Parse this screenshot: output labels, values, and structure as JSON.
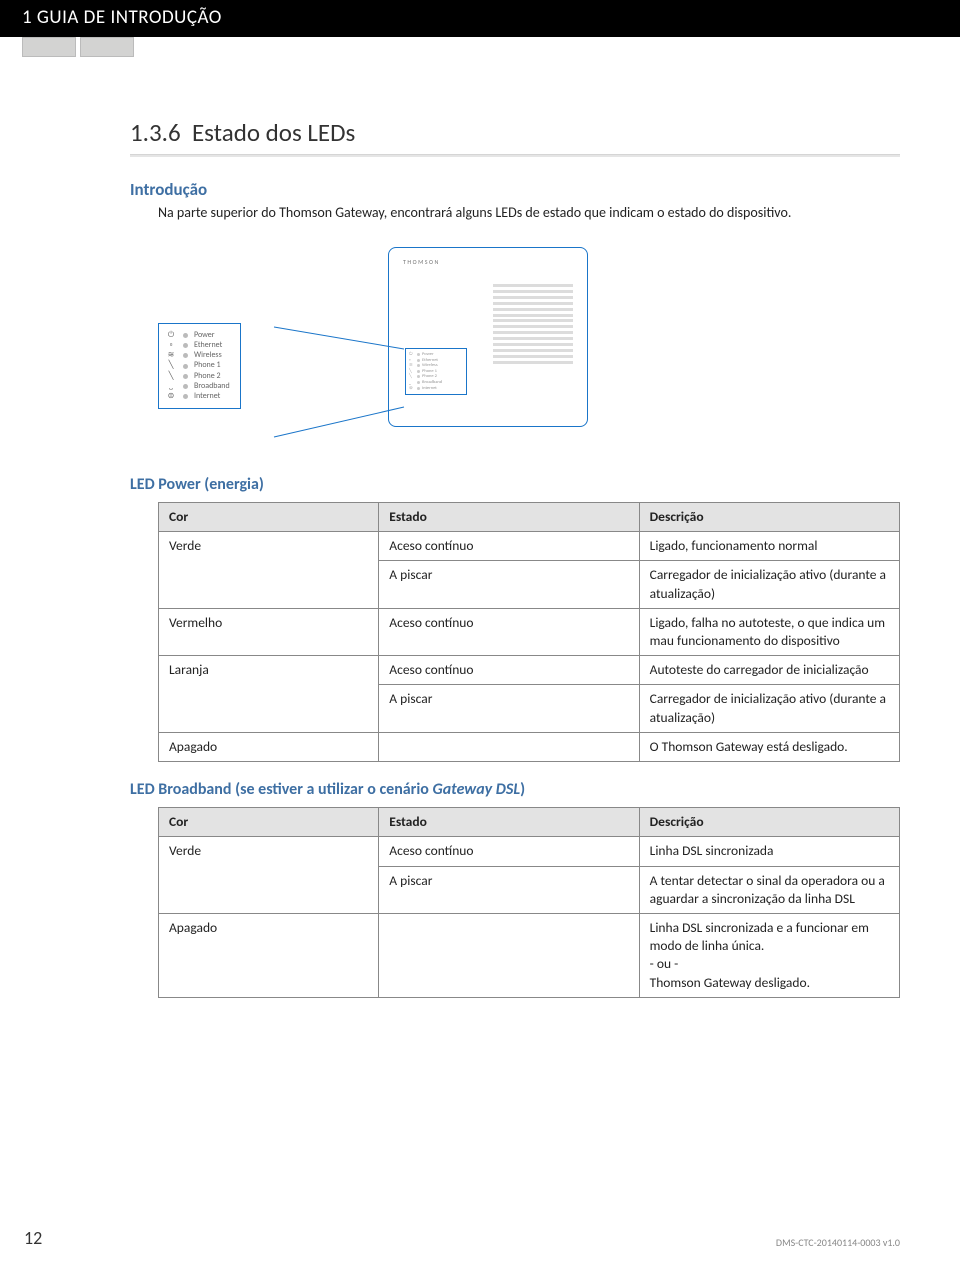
{
  "header": {
    "chapter_title": "1 GUIA DE INTRODUÇÃO"
  },
  "section": {
    "number": "1.3.6",
    "title": "Estado dos LEDs",
    "intro_heading": "Introdução",
    "intro_text": "Na parte superior do Thomson Gateway, encontrará alguns LEDs de estado que indicam o estado do dispositivo."
  },
  "legend": {
    "items": [
      {
        "icon": "⏻",
        "label": "Power"
      },
      {
        "icon": "▫",
        "label": "Ethernet"
      },
      {
        "icon": "≋",
        "label": "Wireless"
      },
      {
        "icon": "╲",
        "label": "Phone 1"
      },
      {
        "icon": "╲",
        "label": "Phone 2"
      },
      {
        "icon": "⎵",
        "label": "Broadband"
      },
      {
        "icon": "⊜",
        "label": "Internet"
      }
    ],
    "brand": "THOMSON"
  },
  "power_table": {
    "heading": "LED Power (energia)",
    "columns": [
      "Cor",
      "Estado",
      "Descrição"
    ],
    "rows": [
      {
        "cor": "Verde",
        "cor_rowspan": 2,
        "estado": "Aceso contínuo",
        "desc": "Ligado, funcionamento normal"
      },
      {
        "cor": null,
        "estado": "A piscar",
        "desc": "Carregador de inicialização ativo (durante a atualização)"
      },
      {
        "cor": "Vermelho",
        "cor_rowspan": 1,
        "estado": "Aceso contínuo",
        "desc": "Ligado, falha no autoteste, o que indica um mau funcionamento do dispositivo"
      },
      {
        "cor": "Laranja",
        "cor_rowspan": 2,
        "estado": "Aceso contínuo",
        "desc": "Autoteste do carregador de inicialização"
      },
      {
        "cor": null,
        "estado": "A piscar",
        "desc": "Carregador de inicialização ativo (durante a atualização)"
      },
      {
        "cor": "Apagado",
        "cor_rowspan": 1,
        "estado_colspan": true,
        "desc": "O Thomson Gateway está desligado."
      }
    ]
  },
  "broadband_table": {
    "heading": "LED Broadband (se estiver a utilizar o cenário Gateway DSL)",
    "heading_prefix": "LED Broadband (se estiver a utilizar o cenário ",
    "heading_em": "Gateway DSL",
    "heading_suffix": ")",
    "columns": [
      "Cor",
      "Estado",
      "Descrição"
    ],
    "rows": [
      {
        "cor": "Verde",
        "cor_rowspan": 2,
        "estado": "Aceso contínuo",
        "desc": "Linha DSL sincronizada"
      },
      {
        "cor": null,
        "estado": "A piscar",
        "desc": "A tentar detectar o sinal da operadora ou a aguardar a sincronização da linha DSL"
      },
      {
        "cor": "Apagado",
        "cor_rowspan": 1,
        "estado_colspan": true,
        "desc": "Linha DSL sincronizada e a funcionar em modo de linha única.\n- ou -\nThomson Gateway desligado."
      }
    ]
  },
  "footer": {
    "page": "12",
    "doc_code": "DMS-CTC-20140114-0003 v1.0"
  },
  "colors": {
    "heading_blue": "#3e6fa3",
    "callout_blue": "#1a75c9",
    "table_header_bg": "#e3e3e3"
  }
}
